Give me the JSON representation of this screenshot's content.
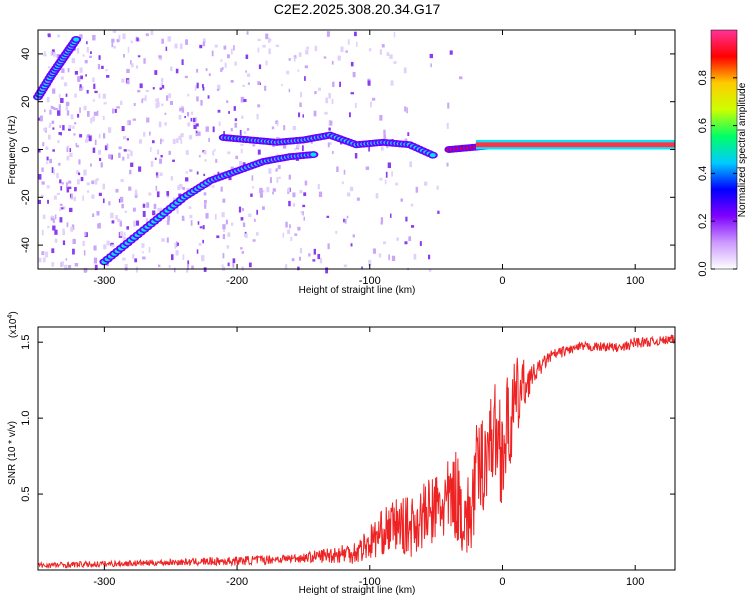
{
  "title": "C2E2.2025.308.20.34.G17",
  "chart_data": [
    {
      "type": "heatmap",
      "xlabel": "Height of straight line (km)",
      "ylabel": "Frequency (Hz)",
      "xlim": [
        -350,
        130
      ],
      "ylim": [
        -50,
        50
      ],
      "xticks": [
        -300,
        -200,
        -100,
        0,
        100
      ],
      "yticks": [
        -40,
        -20,
        0,
        20,
        40
      ],
      "colorbar": {
        "label": "Normalized spectral amplitude",
        "range": [
          0.0,
          1.0
        ],
        "ticks": [
          0.0,
          0.2,
          0.4,
          0.6,
          0.8
        ],
        "tick_labels": [
          "0.0",
          "0.2",
          "0.4",
          "0.6",
          "0.8"
        ],
        "colormap": [
          "#ffffff",
          "#cc99ff",
          "#7f00ff",
          "#0000ff",
          "#00ccff",
          "#00ff66",
          "#ccff00",
          "#ffcc00",
          "#ff0000",
          "#ff3399"
        ]
      },
      "tracks": [
        {
          "x": [
            -350,
            -340,
            -330,
            -320
          ],
          "y": [
            22,
            31,
            39,
            47
          ]
        },
        {
          "x": [
            -300,
            -280,
            -260,
            -240,
            -220,
            -200,
            -180,
            -160,
            -140
          ],
          "y": [
            -47,
            -38,
            -29,
            -20,
            -13,
            -9,
            -5,
            -3,
            -2
          ]
        },
        {
          "x": [
            -210,
            -190,
            -170,
            -150,
            -130,
            -110,
            -90,
            -70,
            -50
          ],
          "y": [
            5,
            4,
            3,
            4,
            6,
            2,
            3,
            2,
            -3
          ]
        },
        {
          "x": [
            -40,
            -20,
            0,
            20,
            40,
            60,
            80,
            100,
            130
          ],
          "y": [
            0,
            1,
            2,
            2,
            2,
            2,
            2,
            2,
            2
          ]
        }
      ]
    },
    {
      "type": "line",
      "xlabel": "Height of straight line (km)",
      "ylabel": "SNR (10 * v/v)",
      "y_scale_label": "(x10",
      "y_scale_exp": "4",
      "y_scale_close": ")",
      "xlim": [
        -350,
        130
      ],
      "ylim": [
        0,
        1.6
      ],
      "xticks": [
        -300,
        -200,
        -100,
        0,
        100
      ],
      "yticks": [
        0.5,
        1.0,
        1.5
      ],
      "ytick_labels": [
        "0.5",
        "1.0",
        "1.5"
      ],
      "series": [
        {
          "color": "#ee2222",
          "x": [
            -350,
            -300,
            -250,
            -200,
            -150,
            -110,
            -100,
            -90,
            -80,
            -70,
            -60,
            -50,
            -40,
            -35,
            -30,
            -25,
            -20,
            -15,
            -10,
            -5,
            0,
            5,
            10,
            15,
            20,
            25,
            30,
            35,
            40,
            50,
            60,
            70,
            80,
            90,
            100,
            110,
            120,
            130
          ],
          "y": [
            0.03,
            0.04,
            0.05,
            0.06,
            0.08,
            0.12,
            0.18,
            0.25,
            0.3,
            0.28,
            0.35,
            0.4,
            0.45,
            0.5,
            0.38,
            0.32,
            0.6,
            0.7,
            0.85,
            0.9,
            0.8,
            0.95,
            1.1,
            1.2,
            1.25,
            1.3,
            1.35,
            1.4,
            1.42,
            1.45,
            1.47,
            1.47,
            1.47,
            1.46,
            1.5,
            1.5,
            1.51,
            1.52
          ],
          "noise": [
            0.02,
            0.02,
            0.02,
            0.03,
            0.03,
            0.08,
            0.12,
            0.15,
            0.18,
            0.2,
            0.22,
            0.25,
            0.28,
            0.3,
            0.3,
            0.3,
            0.35,
            0.35,
            0.3,
            0.35,
            0.4,
            0.35,
            0.3,
            0.2,
            0.1,
            0.06,
            0.05,
            0.04,
            0.04,
            0.03,
            0.03,
            0.03,
            0.03,
            0.03,
            0.04,
            0.03,
            0.03,
            0.03
          ]
        }
      ]
    }
  ]
}
